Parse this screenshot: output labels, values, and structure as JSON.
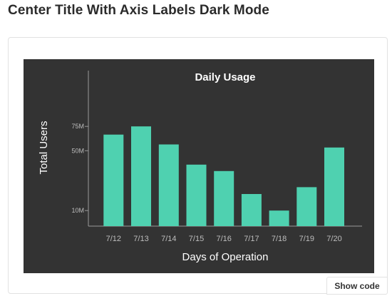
{
  "page": {
    "heading": "Center Title With Axis Labels Dark Mode"
  },
  "actions": {
    "show_code_label": "Show code"
  },
  "colors": {
    "background": "#333333",
    "bar": "#4fd1b0",
    "axis": "#9a9a9a",
    "text": "#ffffff",
    "tick_text": "#bdbdbd"
  },
  "chart_data": {
    "type": "bar",
    "title": "Daily Usage",
    "xlabel": "Days of Operation",
    "ylabel": "Total Users",
    "categories": [
      "7/12",
      "7/13",
      "7/14",
      "7/15",
      "7/16",
      "7/17",
      "7/18",
      "7/19",
      "7/20"
    ],
    "values": [
      66000000,
      75000000,
      56000000,
      38000000,
      33000000,
      18000000,
      10000000,
      22000000,
      53000000
    ],
    "ylim": [
      0,
      100000000
    ],
    "yticks": [
      {
        "value": 10000000,
        "label": "10M"
      },
      {
        "value": 50000000,
        "label": "50M"
      },
      {
        "value": 75000000,
        "label": "75M"
      }
    ],
    "y_scale": "sqrt",
    "grid": false
  }
}
